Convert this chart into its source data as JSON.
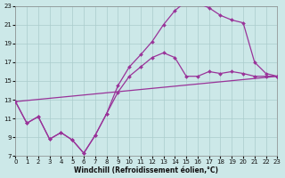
{
  "bg_color": "#cce8e8",
  "grid_color": "#aacccc",
  "line_color": "#993399",
  "xlabel": "Windchill (Refroidissement éolien,°C)",
  "xlim": [
    0,
    23
  ],
  "ylim": [
    7,
    23
  ],
  "yticks": [
    7,
    9,
    11,
    13,
    15,
    17,
    19,
    21,
    23
  ],
  "xticks": [
    0,
    1,
    2,
    3,
    4,
    5,
    6,
    7,
    8,
    9,
    10,
    11,
    12,
    13,
    14,
    15,
    16,
    17,
    18,
    19,
    20,
    21,
    22,
    23
  ],
  "curve1_x": [
    0,
    1,
    2,
    3,
    4,
    5,
    6,
    7,
    8,
    9,
    10,
    11,
    12,
    13,
    14,
    15,
    16,
    17,
    18,
    19,
    20,
    21,
    22,
    23
  ],
  "curve1_y": [
    12.8,
    10.5,
    11.2,
    8.8,
    9.5,
    8.7,
    7.3,
    9.2,
    11.5,
    13.8,
    15.5,
    16.5,
    17.5,
    18.0,
    17.5,
    15.5,
    15.5,
    16.0,
    15.8,
    16.0,
    15.8,
    15.5,
    15.5,
    15.5
  ],
  "curve2_x": [
    0,
    1,
    2,
    3,
    4,
    5,
    6,
    7,
    8,
    9,
    10,
    11,
    12,
    13,
    14,
    15,
    16,
    17,
    18,
    19,
    20,
    21,
    22,
    23
  ],
  "curve2_y": [
    12.8,
    10.5,
    11.2,
    8.8,
    9.5,
    8.7,
    7.3,
    9.2,
    11.5,
    14.5,
    16.5,
    17.8,
    19.2,
    21.0,
    22.5,
    23.5,
    23.3,
    22.8,
    22.0,
    21.5,
    21.2,
    17.0,
    15.8,
    15.5
  ],
  "curve3_x": [
    0,
    23
  ],
  "curve3_y": [
    12.8,
    15.5
  ]
}
